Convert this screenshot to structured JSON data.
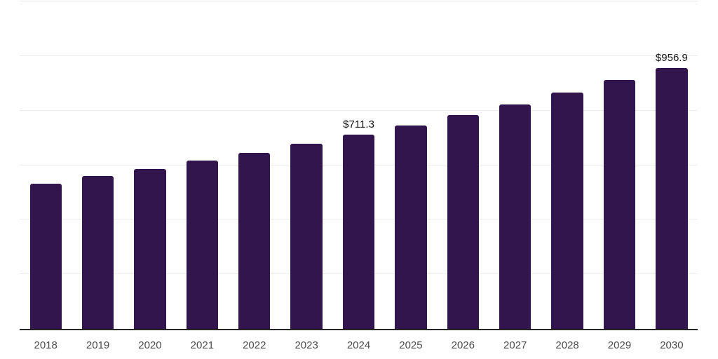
{
  "chart_data": {
    "type": "bar",
    "title": "",
    "xlabel": "",
    "ylabel": "",
    "categories": [
      "2018",
      "2019",
      "2020",
      "2021",
      "2022",
      "2023",
      "2024",
      "2025",
      "2026",
      "2027",
      "2028",
      "2029",
      "2030"
    ],
    "values": [
      531.2,
      559.2,
      586.6,
      617.1,
      645.9,
      678.3,
      711.3,
      746.4,
      784.6,
      822.9,
      867.0,
      912.1,
      956.9
    ],
    "data_labels": [
      "",
      "",
      "",
      "",
      "",
      "",
      "$711.3",
      "",
      "",
      "",
      "",
      "",
      "$956.9"
    ],
    "value_prefix": "$",
    "ylim": [
      0,
      1200
    ],
    "gridline_values": [
      200,
      400,
      600,
      800,
      1000,
      1200
    ],
    "grid": "horizontal",
    "legend": "none",
    "y_tick_labels_visible": false,
    "colors": {
      "bar": "#33154E",
      "axis": "#262626",
      "gridline": "#ececec",
      "top_gridline": "#e8e8e8",
      "value_label": "#111111",
      "x_tick_label": "#4a4a4a",
      "background": "#ffffff"
    }
  }
}
